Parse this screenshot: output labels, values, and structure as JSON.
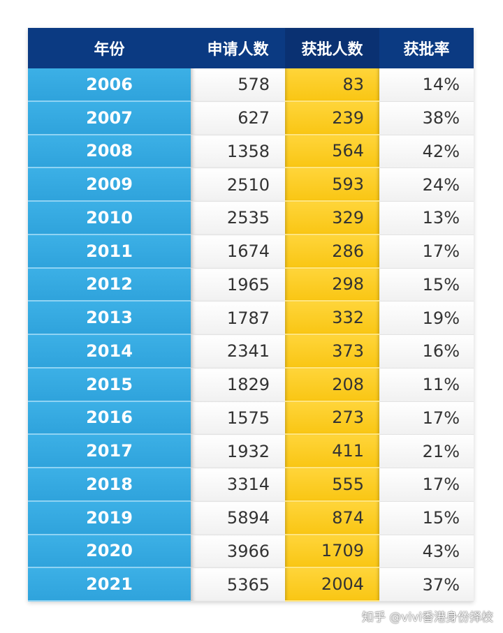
{
  "chart_data": {
    "type": "table",
    "columns": [
      "年份",
      "申请人数",
      "获批人数",
      "获批率"
    ],
    "rows": [
      [
        "2006",
        "578",
        "83",
        "14%"
      ],
      [
        "2007",
        "627",
        "239",
        "38%"
      ],
      [
        "2008",
        "1358",
        "564",
        "42%"
      ],
      [
        "2009",
        "2510",
        "593",
        "24%"
      ],
      [
        "2010",
        "2535",
        "329",
        "13%"
      ],
      [
        "2011",
        "1674",
        "286",
        "17%"
      ],
      [
        "2012",
        "1965",
        "298",
        "15%"
      ],
      [
        "2013",
        "1787",
        "332",
        "19%"
      ],
      [
        "2014",
        "2341",
        "373",
        "16%"
      ],
      [
        "2015",
        "1829",
        "208",
        "11%"
      ],
      [
        "2016",
        "1575",
        "273",
        "17%"
      ],
      [
        "2017",
        "1932",
        "411",
        "21%"
      ],
      [
        "2018",
        "3314",
        "555",
        "17%"
      ],
      [
        "2019",
        "5894",
        "874",
        "15%"
      ],
      [
        "2020",
        "3966",
        "1709",
        "43%"
      ],
      [
        "2021",
        "5365",
        "2004",
        "37%"
      ]
    ]
  },
  "colors": {
    "header_bg": "#0b3a82",
    "year_col": "#2fa3dc",
    "approved_col": "#f9c614"
  },
  "watermark": "知乎 @vivi香港身份择校"
}
